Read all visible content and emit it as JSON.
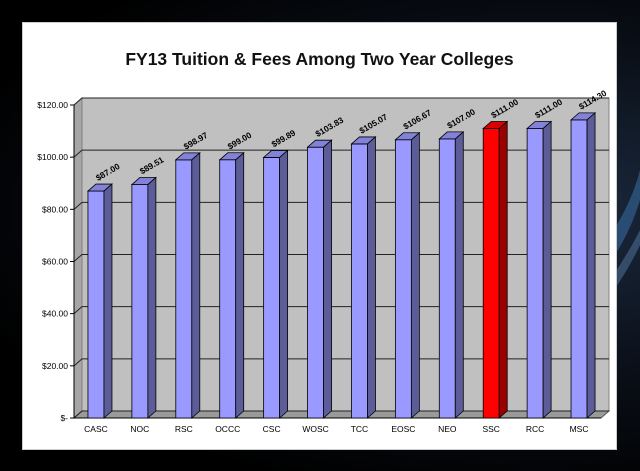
{
  "chart_data": {
    "type": "bar",
    "title": "FY13 Tuition & Fees Among Two Year Colleges",
    "categories": [
      "CASC",
      "NOC",
      "RSC",
      "OCCC",
      "CSC",
      "WOSC",
      "TCC",
      "EOSC",
      "NEO",
      "SSC",
      "RCC",
      "MSC"
    ],
    "values": [
      87.0,
      89.51,
      98.97,
      99.0,
      99.89,
      103.83,
      105.07,
      106.67,
      107.0,
      111.0,
      111.0,
      114.3
    ],
    "value_labels": [
      "$87.00",
      "$89.51",
      "$98.97",
      "$99.00",
      "$99.89",
      "$103.83",
      "$105.07",
      "$106.67",
      "$107.00",
      "$111.00",
      "$111.00",
      "$114.30"
    ],
    "y_ticks": [
      0,
      20,
      40,
      60,
      80,
      100,
      120
    ],
    "y_tick_labels": [
      "$-",
      "$20.00",
      "$40.00",
      "$60.00",
      "$80.00",
      "$100.00",
      "$120.00"
    ],
    "ylim": [
      0,
      120
    ],
    "grid": true,
    "bar_color": "#9999ff",
    "highlight_index": 9,
    "highlight_color": "#ff0000",
    "plot_background": "#c0c0c0"
  }
}
